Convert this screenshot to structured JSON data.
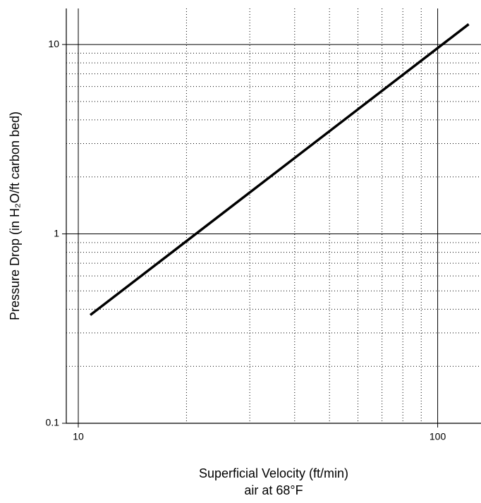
{
  "chart_data": {
    "type": "line",
    "xlabel": [
      "Superficial Velocity (ft/min)",
      "air at 68°F"
    ],
    "ylabel": "Pressure Drop (in H₂O/ft carbon bed)",
    "x_log": true,
    "y_log": true,
    "grid": true,
    "x": [
      10.8,
      122
    ],
    "series": [
      {
        "color": "#000000",
        "values": [
          0.373,
          12.8
        ]
      }
    ],
    "xlim": [
      9.26,
      132
    ],
    "ylim": [
      0.1,
      15.5
    ],
    "xticks": [
      10,
      100
    ],
    "yticks": [
      0.1,
      1,
      10
    ],
    "x_minor_ticks": [
      20,
      30,
      40,
      50,
      60,
      70,
      80,
      90
    ],
    "y_minor_ticks": [
      0.2,
      0.3,
      0.4,
      0.5,
      0.6,
      0.7,
      0.8,
      0.9,
      2,
      3,
      4,
      5,
      6,
      7,
      8,
      9
    ]
  }
}
